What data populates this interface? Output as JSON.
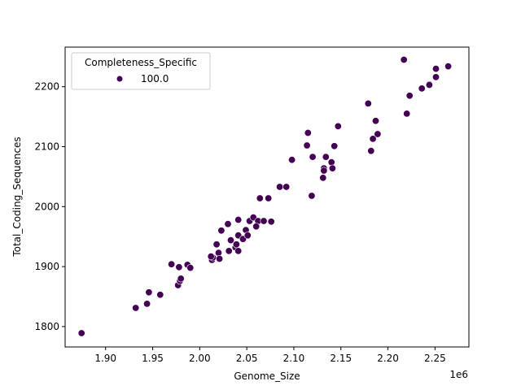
{
  "chart_data": {
    "type": "scatter",
    "title": "",
    "xlabel": "Genome_Size",
    "ylabel": "Total_Coding_Sequences",
    "x_offset_label": "1e6",
    "xlim": [
      1.857,
      2.286
    ],
    "ylim": [
      1766,
      2266
    ],
    "xticks": [
      1.9,
      1.95,
      2.0,
      2.05,
      2.1,
      2.15,
      2.2,
      2.25
    ],
    "xtick_labels": [
      "1.90",
      "1.95",
      "2.00",
      "2.05",
      "2.10",
      "2.15",
      "2.20",
      "2.25"
    ],
    "yticks": [
      1800,
      1900,
      2000,
      2100,
      2200
    ],
    "ytick_labels": [
      "1800",
      "1900",
      "2000",
      "2100",
      "2200"
    ],
    "grid": false,
    "legend": {
      "title": "Completeness_Specific",
      "position": "upper left",
      "entries": [
        {
          "label": "100.0",
          "color": "#440154"
        }
      ]
    },
    "marker_color": "#440154",
    "series": [
      {
        "name": "100.0",
        "points": [
          [
            1.8745,
            1789
          ],
          [
            1.932,
            1831
          ],
          [
            1.944,
            1838
          ],
          [
            1.946,
            1857
          ],
          [
            1.958,
            1853
          ],
          [
            1.97,
            1904
          ],
          [
            1.978,
            1899
          ],
          [
            1.987,
            1903
          ],
          [
            1.99,
            1898
          ],
          [
            1.977,
            1869
          ],
          [
            1.979,
            1876
          ],
          [
            1.98,
            1880
          ],
          [
            2.013,
            1911
          ],
          [
            2.014,
            1915
          ],
          [
            2.02,
            1923
          ],
          [
            2.021,
            1913
          ],
          [
            2.012,
            1917
          ],
          [
            2.018,
            1937
          ],
          [
            2.023,
            1960
          ],
          [
            2.03,
            1971
          ],
          [
            2.041,
            1978
          ],
          [
            2.031,
            1926
          ],
          [
            2.033,
            1944
          ],
          [
            2.038,
            1932
          ],
          [
            2.039,
            1937
          ],
          [
            2.041,
            1926
          ],
          [
            2.041,
            1952
          ],
          [
            2.046,
            1946
          ],
          [
            2.049,
            1961
          ],
          [
            2.051,
            1952
          ],
          [
            2.053,
            1976
          ],
          [
            2.057,
            1982
          ],
          [
            2.062,
            1976
          ],
          [
            2.068,
            1976
          ],
          [
            2.076,
            1975
          ],
          [
            2.06,
            1967
          ],
          [
            2.064,
            2014
          ],
          [
            2.073,
            2014
          ],
          [
            2.085,
            2033
          ],
          [
            2.092,
            2033
          ],
          [
            2.098,
            2078
          ],
          [
            2.115,
            2123
          ],
          [
            2.114,
            2102
          ],
          [
            2.12,
            2083
          ],
          [
            2.119,
            2018
          ],
          [
            2.134,
            2083
          ],
          [
            2.14,
            2074
          ],
          [
            2.132,
            2064
          ],
          [
            2.132,
            2060
          ],
          [
            2.141,
            2064
          ],
          [
            2.131,
            2048
          ],
          [
            2.143,
            2101
          ],
          [
            2.147,
            2134
          ],
          [
            2.179,
            2172
          ],
          [
            2.182,
            2093
          ],
          [
            2.184,
            2113
          ],
          [
            2.187,
            2143
          ],
          [
            2.189,
            2121
          ],
          [
            2.217,
            2245
          ],
          [
            2.22,
            2155
          ],
          [
            2.223,
            2185
          ],
          [
            2.236,
            2197
          ],
          [
            2.244,
            2204
          ],
          [
            2.244,
            2203
          ],
          [
            2.251,
            2216
          ],
          [
            2.251,
            2230
          ],
          [
            2.264,
            2234
          ]
        ]
      }
    ]
  }
}
